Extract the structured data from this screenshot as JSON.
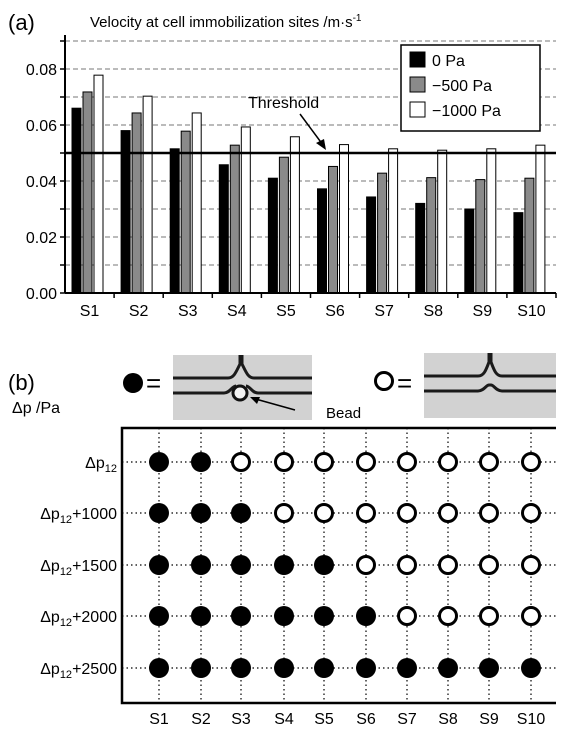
{
  "chart_data": [
    {
      "type": "bar",
      "panel_label": "(a)",
      "title": "Velocity at cell immobilization sites /m·s",
      "title_superscript": "-1",
      "categories": [
        "S1",
        "S2",
        "S3",
        "S4",
        "S5",
        "S6",
        "S7",
        "S8",
        "S9",
        "S10"
      ],
      "series": [
        {
          "name": "0 Pa",
          "color": "#000000",
          "values": [
            0.066,
            0.058,
            0.0515,
            0.0458,
            0.041,
            0.0372,
            0.0343,
            0.032,
            0.03,
            0.0287
          ]
        },
        {
          "name": "−500 Pa",
          "color": "#8a8a8a",
          "values": [
            0.0718,
            0.0643,
            0.0578,
            0.0528,
            0.0485,
            0.0452,
            0.0428,
            0.0412,
            0.0405,
            0.041
          ]
        },
        {
          "name": "−1000 Pa",
          "color": "#ffffff",
          "values": [
            0.0778,
            0.0703,
            0.0643,
            0.0593,
            0.0558,
            0.053,
            0.0515,
            0.051,
            0.0515,
            0.0528
          ]
        }
      ],
      "ylim": [
        0,
        0.09
      ],
      "yticks": [
        "0.00",
        "0.02",
        "0.04",
        "0.06",
        "0.08"
      ],
      "threshold": {
        "label": "Threshold",
        "value": 0.05
      },
      "grid": "dashed horizontal",
      "legend_position": "top-right"
    },
    {
      "type": "scatter",
      "panel_label": "(b)",
      "ylabel": "Δp /Pa",
      "columns": [
        "S1",
        "S2",
        "S3",
        "S4",
        "S5",
        "S6",
        "S7",
        "S8",
        "S9",
        "S10"
      ],
      "rows": [
        {
          "base": "Δp",
          "sub": "12",
          "suffix": "",
          "filled": 2
        },
        {
          "base": "Δp",
          "sub": "12",
          "suffix": "+1000",
          "filled": 3
        },
        {
          "base": "Δp",
          "sub": "12",
          "suffix": "+1500",
          "filled": 5
        },
        {
          "base": "Δp",
          "sub": "12",
          "suffix": "+2000",
          "filled": 6
        },
        {
          "base": "Δp",
          "sub": "12",
          "suffix": "+2500",
          "filled": 10
        }
      ],
      "legend": {
        "equals": "=",
        "bead_label": "Bead"
      }
    }
  ]
}
